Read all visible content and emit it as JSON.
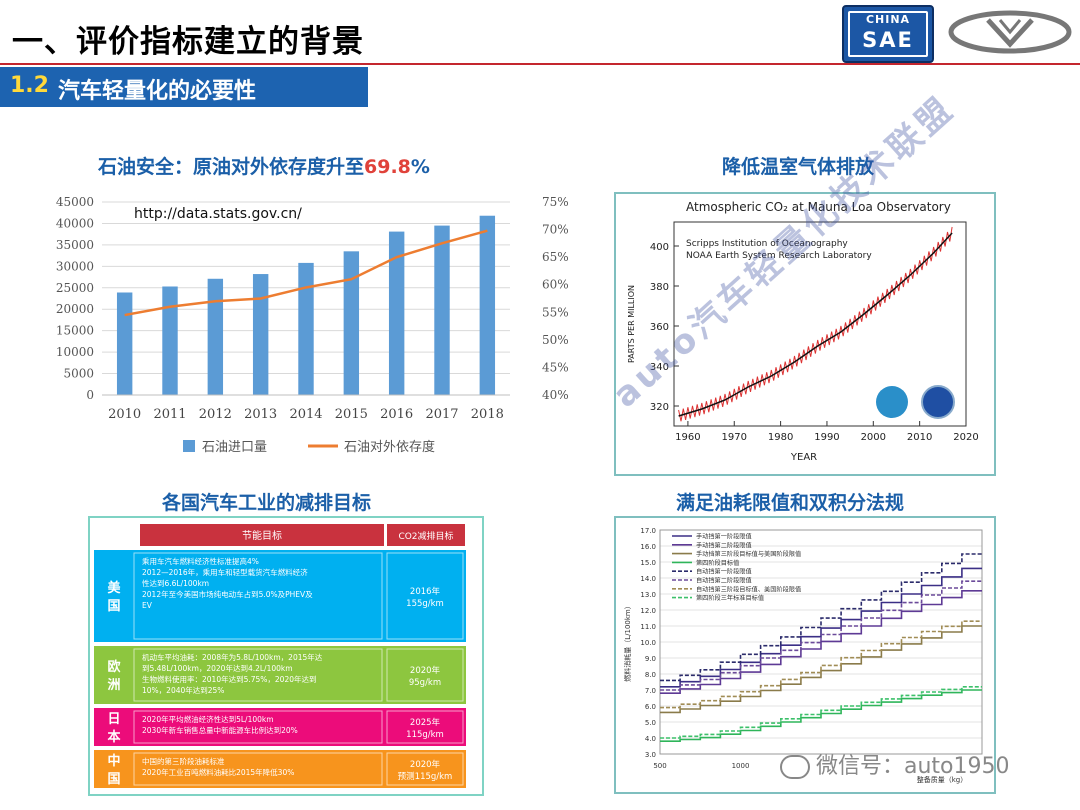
{
  "header": {
    "title": "一、评价指标建立的背景",
    "section_number": "1.2",
    "section_title": "汽车轻量化的必要性",
    "logo_text_top": "CHINA",
    "logo_text_bottom": "SAE"
  },
  "panels": {
    "oil": {
      "title_prefix": "石油安全：原油对外依存度升至",
      "title_value": "69.8",
      "title_suffix": "%",
      "source": "http://data.stats.gov.cn/"
    },
    "co2": {
      "title": "降低温室气体排放",
      "chart_title": "Atmospheric CO₂ at Mauna Loa Observatory",
      "org1": "Scripps Institution of Oceanography",
      "org2": "NOAA Earth System Research Laboratory"
    },
    "targets": {
      "title": "各国汽车工业的减排目标",
      "col1": "节能目标",
      "col2": "CO2减排目标",
      "rows": [
        {
          "region": "美国",
          "lines": [
            "乘用车汽车燃料经济性标准提高4%",
            "2012—2016年，乘用车和轻型载货汽车燃料经济",
            "性达到6.6L/100km",
            "2012年至今美国市场纯电动车占到5.0%及PHEV及",
            "EV"
          ],
          "target": "2016年\n155g/km"
        },
        {
          "region": "欧洲",
          "lines": [
            "机动车平均油耗：2008年为5.8L/100km，2015年达",
            "到5.48L/100km，2020年达到4.2L/100km",
            "生物燃料使用率：2010年达到5.75%，2020年达到",
            "10%，2040年达到25%"
          ],
          "target": "2020年\n95g/km"
        },
        {
          "region": "日本",
          "lines": [
            "2020年平均燃油经济性达到5L/100km",
            "2030年新车销售总量中新能源车比例达到20%"
          ],
          "target": "2025年\n115g/km"
        },
        {
          "region": "中国",
          "lines": [
            "中国的第三阶段油耗标准",
            "2020年工业百吨燃料油耗比2015年降低30%"
          ],
          "target": "2020年\n预测115g/km"
        }
      ]
    },
    "fuel": {
      "title": "满足油耗限值和双积分法规",
      "legend": [
        "手动挡第一阶段限值",
        "手动挡第二阶段限值",
        "手动挡第三阶段目标值与美国阶段限值",
        "第四阶段目标值",
        "自动挡第一阶段限值",
        "自动挡第二阶段限值",
        "自动挡第三阶段目标值、美国阶段限值",
        "第四阶段三年标准目标值"
      ],
      "ylabel": "燃料消耗量（L/100km）",
      "xlabel": "整备质量（kg）"
    }
  },
  "footer": {
    "watermark": "微信号：auto1950",
    "diagonal": "auto汽车轻量化技术联盟"
  },
  "colors": {
    "bar": "#5b9bd5",
    "line": "#ed7d31",
    "title_blue": "#1b5fa8",
    "accent_red": "#c4262e"
  },
  "chart_data": [
    {
      "type": "bar",
      "title": "石油安全：原油对外依存度升至69.8%",
      "categories": [
        "2010",
        "2011",
        "2012",
        "2013",
        "2014",
        "2015",
        "2016",
        "2017",
        "2018"
      ],
      "y_ticks": [
        "0",
        "5000",
        "10000",
        "15000",
        "20000",
        "25000",
        "30000",
        "35000",
        "40000",
        "45000"
      ],
      "y2_ticks": [
        "40%",
        "45%",
        "50%",
        "55%",
        "60%",
        "65%",
        "70%",
        "75%"
      ],
      "ylim": [
        0,
        45000
      ],
      "y2lim": [
        40,
        75
      ],
      "series": [
        {
          "name": "石油进口量",
          "type": "bar",
          "values": [
            23900,
            25300,
            27100,
            28200,
            30800,
            33500,
            38100,
            39500,
            41800
          ]
        },
        {
          "name": "石油对外依存度",
          "type": "line",
          "axis": "right",
          "values": [
            54.5,
            56.0,
            57.0,
            57.5,
            59.5,
            61.0,
            65.0,
            67.5,
            69.8
          ]
        }
      ],
      "legend": "bottom"
    },
    {
      "type": "line",
      "title": "Atmospheric CO₂ at Mauna Loa Observatory",
      "xlabel": "YEAR",
      "ylabel": "PARTS PER MILLION",
      "x_ticks": [
        "1960",
        "1970",
        "1980",
        "1990",
        "2000",
        "2010",
        "2020"
      ],
      "y_ticks": [
        "320",
        "340",
        "360",
        "380",
        "400"
      ],
      "xlim": [
        1957,
        2020
      ],
      "ylim": [
        310,
        412
      ],
      "x": [
        1958,
        1963,
        1968,
        1973,
        1978,
        1983,
        1988,
        1993,
        1998,
        2003,
        2008,
        2013,
        2017
      ],
      "values": [
        315,
        318.5,
        323,
        329.5,
        335,
        342,
        350,
        357,
        366,
        375.5,
        385.5,
        396.5,
        406.5
      ]
    },
    {
      "type": "line",
      "title": "满足油耗限值和双积分法规",
      "x_ticks": [
        "500",
        "1000"
      ],
      "y_ticks": [
        "3.0",
        "4.0",
        "5.0",
        "6.0",
        "7.0",
        "8.0",
        "9.0",
        "10.0",
        "11.0",
        "12.0",
        "13.0",
        "14.0",
        "15.0",
        "16.0",
        "17.0"
      ],
      "xlim": [
        500,
        2500
      ],
      "ylim": [
        3,
        17
      ],
      "x": [
        500,
        750,
        1000,
        1250,
        1500,
        1750,
        2000,
        2250,
        2500
      ],
      "series": [
        {
          "name": "手动挡第一阶段限值",
          "values": [
            7.2,
            7.8,
            8.6,
            9.6,
            10.6,
            11.6,
            12.6,
            13.6,
            14.6
          ]
        },
        {
          "name": "手动挡第二阶段限值",
          "values": [
            6.8,
            7.3,
            8.0,
            8.9,
            9.8,
            10.7,
            11.6,
            12.4,
            13.2
          ]
        },
        {
          "name": "手动挡第三阶段目标值与美国阶段限值",
          "values": [
            5.6,
            6.0,
            6.5,
            7.2,
            8.0,
            8.8,
            9.6,
            10.3,
            11.0
          ]
        },
        {
          "name": "第四阶段目标值",
          "values": [
            3.8,
            4.0,
            4.4,
            4.9,
            5.4,
            5.9,
            6.3,
            6.7,
            7.0
          ]
        },
        {
          "name": "自动挡第一阶段限值",
          "values": [
            7.6,
            8.2,
            9.1,
            10.1,
            11.2,
            12.3,
            13.3,
            14.4,
            15.5
          ]
        },
        {
          "name": "自动挡第二阶段限值",
          "values": [
            7.0,
            7.6,
            8.4,
            9.3,
            10.2,
            11.2,
            12.1,
            13.0,
            13.8
          ]
        },
        {
          "name": "自动挡第三阶段目标值、美国阶段限值",
          "values": [
            5.9,
            6.3,
            6.8,
            7.5,
            8.3,
            9.2,
            10.0,
            10.7,
            11.3
          ]
        },
        {
          "name": "第四阶段三年标准目标值",
          "values": [
            4.0,
            4.2,
            4.6,
            5.1,
            5.6,
            6.1,
            6.5,
            6.9,
            7.2
          ]
        }
      ]
    }
  ]
}
